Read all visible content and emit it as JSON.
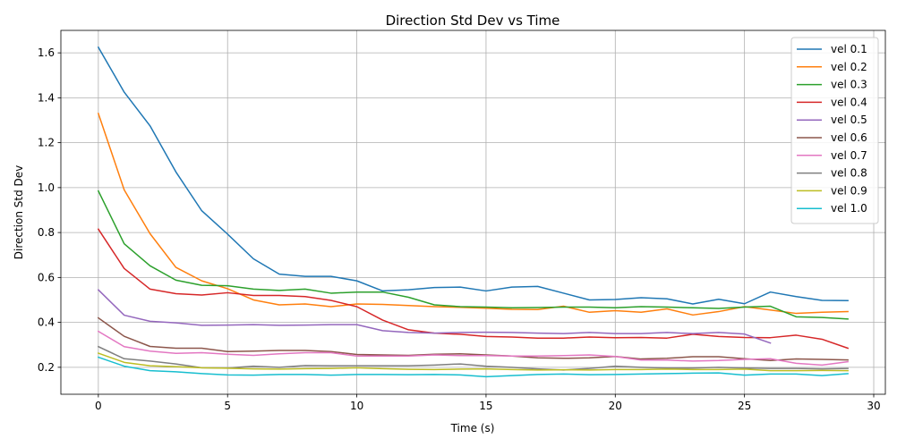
{
  "chart_data": {
    "type": "line",
    "title": "Direction Std Dev vs Time",
    "xlabel": "Time (s)",
    "ylabel": "Direction Std Dev",
    "xlim": [
      -1.45,
      30.45
    ],
    "ylim": [
      0.08,
      1.7
    ],
    "xticks": [
      0,
      5,
      10,
      15,
      20,
      25,
      30
    ],
    "yticks": [
      0.2,
      0.4,
      0.6,
      0.8,
      1.0,
      1.2,
      1.4,
      1.6
    ],
    "grid": true,
    "legend_position": "top-right",
    "x": [
      0,
      1,
      2,
      3,
      4,
      5,
      6,
      7,
      8,
      9,
      10,
      11,
      12,
      13,
      14,
      15,
      16,
      17,
      18,
      19,
      20,
      21,
      22,
      23,
      24,
      25,
      26,
      27,
      28,
      29
    ],
    "series": [
      {
        "name": "vel 0.1",
        "color": "#1f77b4",
        "values": [
          1.625,
          1.425,
          1.275,
          1.07,
          0.897,
          0.793,
          0.683,
          0.615,
          0.605,
          0.605,
          0.585,
          0.54,
          0.545,
          0.555,
          0.557,
          0.54,
          0.557,
          0.56,
          0.53,
          0.5,
          0.502,
          0.51,
          0.505,
          0.482,
          0.503,
          0.483,
          0.535,
          0.515,
          0.498,
          0.497
        ]
      },
      {
        "name": "vel 0.2",
        "color": "#ff7f0e",
        "values": [
          1.33,
          0.99,
          0.795,
          0.645,
          0.585,
          0.55,
          0.5,
          0.478,
          0.482,
          0.47,
          0.482,
          0.48,
          0.475,
          0.47,
          0.467,
          0.463,
          0.458,
          0.457,
          0.472,
          0.445,
          0.452,
          0.445,
          0.46,
          0.433,
          0.448,
          0.47,
          0.455,
          0.44,
          0.445,
          0.448
        ]
      },
      {
        "name": "vel 0.3",
        "color": "#2ca02c",
        "values": [
          0.985,
          0.75,
          0.652,
          0.588,
          0.565,
          0.563,
          0.548,
          0.542,
          0.548,
          0.53,
          0.535,
          0.535,
          0.512,
          0.478,
          0.47,
          0.468,
          0.465,
          0.466,
          0.468,
          0.468,
          0.465,
          0.47,
          0.468,
          0.465,
          0.462,
          0.468,
          0.472,
          0.425,
          0.422,
          0.415
        ]
      },
      {
        "name": "vel 0.4",
        "color": "#d62728",
        "values": [
          0.815,
          0.64,
          0.548,
          0.528,
          0.522,
          0.532,
          0.52,
          0.52,
          0.515,
          0.498,
          0.47,
          0.41,
          0.367,
          0.352,
          0.347,
          0.337,
          0.335,
          0.33,
          0.33,
          0.335,
          0.332,
          0.333,
          0.33,
          0.347,
          0.337,
          0.333,
          0.332,
          0.343,
          0.325,
          0.285
        ]
      },
      {
        "name": "vel 0.5",
        "color": "#9467bd",
        "values": [
          0.545,
          0.432,
          0.405,
          0.398,
          0.387,
          0.388,
          0.39,
          0.387,
          0.388,
          0.39,
          0.39,
          0.363,
          0.355,
          0.352,
          0.355,
          0.356,
          0.355,
          0.352,
          0.35,
          0.355,
          0.35,
          0.35,
          0.355,
          0.35,
          0.355,
          0.348,
          0.308,
          null,
          null,
          null
        ]
      },
      {
        "name": "vel 0.6",
        "color": "#8c564b",
        "values": [
          0.42,
          0.338,
          0.293,
          0.285,
          0.285,
          0.27,
          0.272,
          0.275,
          0.275,
          0.27,
          0.257,
          0.255,
          0.253,
          0.258,
          0.26,
          0.255,
          0.25,
          0.242,
          0.24,
          0.242,
          0.248,
          0.237,
          0.24,
          0.247,
          0.247,
          0.238,
          0.23,
          0.237,
          0.235,
          0.233
        ]
      },
      {
        "name": "vel 0.7",
        "color": "#e377c2",
        "values": [
          0.36,
          0.292,
          0.272,
          0.262,
          0.265,
          0.258,
          0.253,
          0.26,
          0.265,
          0.265,
          0.25,
          0.25,
          0.25,
          0.255,
          0.252,
          0.252,
          0.25,
          0.25,
          0.252,
          0.255,
          0.248,
          0.232,
          0.232,
          0.228,
          0.23,
          0.235,
          0.238,
          0.218,
          0.21,
          0.225
        ]
      },
      {
        "name": "vel 0.8",
        "color": "#7f7f7f",
        "values": [
          0.292,
          0.238,
          0.228,
          0.215,
          0.198,
          0.197,
          0.205,
          0.2,
          0.208,
          0.207,
          0.207,
          0.207,
          0.207,
          0.21,
          0.215,
          0.205,
          0.2,
          0.193,
          0.188,
          0.195,
          0.205,
          0.2,
          0.197,
          0.197,
          0.2,
          0.197,
          0.195,
          0.195,
          0.193,
          0.195
        ]
      },
      {
        "name": "vel 0.9",
        "color": "#bcbd22",
        "values": [
          0.263,
          0.222,
          0.207,
          0.203,
          0.198,
          0.196,
          0.193,
          0.192,
          0.194,
          0.195,
          0.198,
          0.194,
          0.191,
          0.19,
          0.192,
          0.193,
          0.19,
          0.188,
          0.189,
          0.188,
          0.19,
          0.19,
          0.192,
          0.19,
          0.19,
          0.192,
          0.185,
          0.185,
          0.186,
          0.185
        ]
      },
      {
        "name": "vel 1.0",
        "color": "#17becf",
        "values": [
          0.245,
          0.205,
          0.185,
          0.18,
          0.172,
          0.166,
          0.165,
          0.168,
          0.168,
          0.165,
          0.168,
          0.168,
          0.167,
          0.168,
          0.166,
          0.158,
          0.163,
          0.168,
          0.17,
          0.167,
          0.168,
          0.17,
          0.172,
          0.174,
          0.175,
          0.165,
          0.17,
          0.17,
          0.163,
          0.172
        ]
      }
    ]
  }
}
